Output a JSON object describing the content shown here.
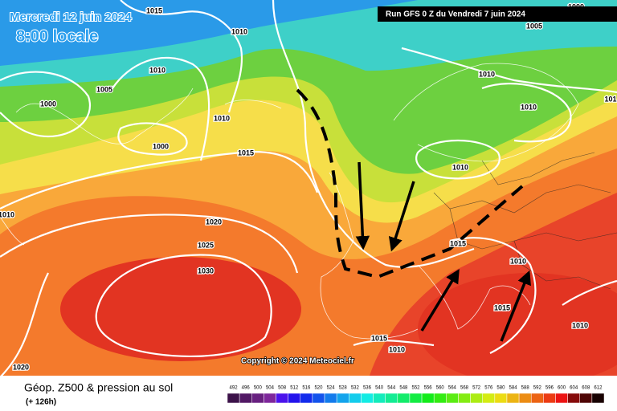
{
  "header": {
    "date": "Mercredi 12 juin 2024",
    "time": "8:00 locale",
    "run": "Run GFS 0 Z du Vendredi 7 juin 2024"
  },
  "isobar_labels": [
    1015,
    1010,
    1010,
    1005,
    1000,
    1010,
    1000,
    1015,
    1010,
    1020,
    1025,
    1030,
    1020,
    1000,
    1005,
    1010,
    1010,
    101,
    1010,
    1015,
    1010,
    1015,
    1010,
    1015,
    1010
  ],
  "copyright": "Copyright © 2024 Meteociel.fr",
  "footer": {
    "title": "Géop. Z500 & pression au sol",
    "lead": "(+ 126h)"
  },
  "scale": [
    492,
    496,
    500,
    504,
    508,
    512,
    516,
    520,
    524,
    528,
    532,
    536,
    540,
    544,
    548,
    552,
    556,
    560,
    564,
    568,
    572,
    576,
    580,
    584,
    588,
    592,
    596,
    600,
    604,
    608,
    612
  ]
}
